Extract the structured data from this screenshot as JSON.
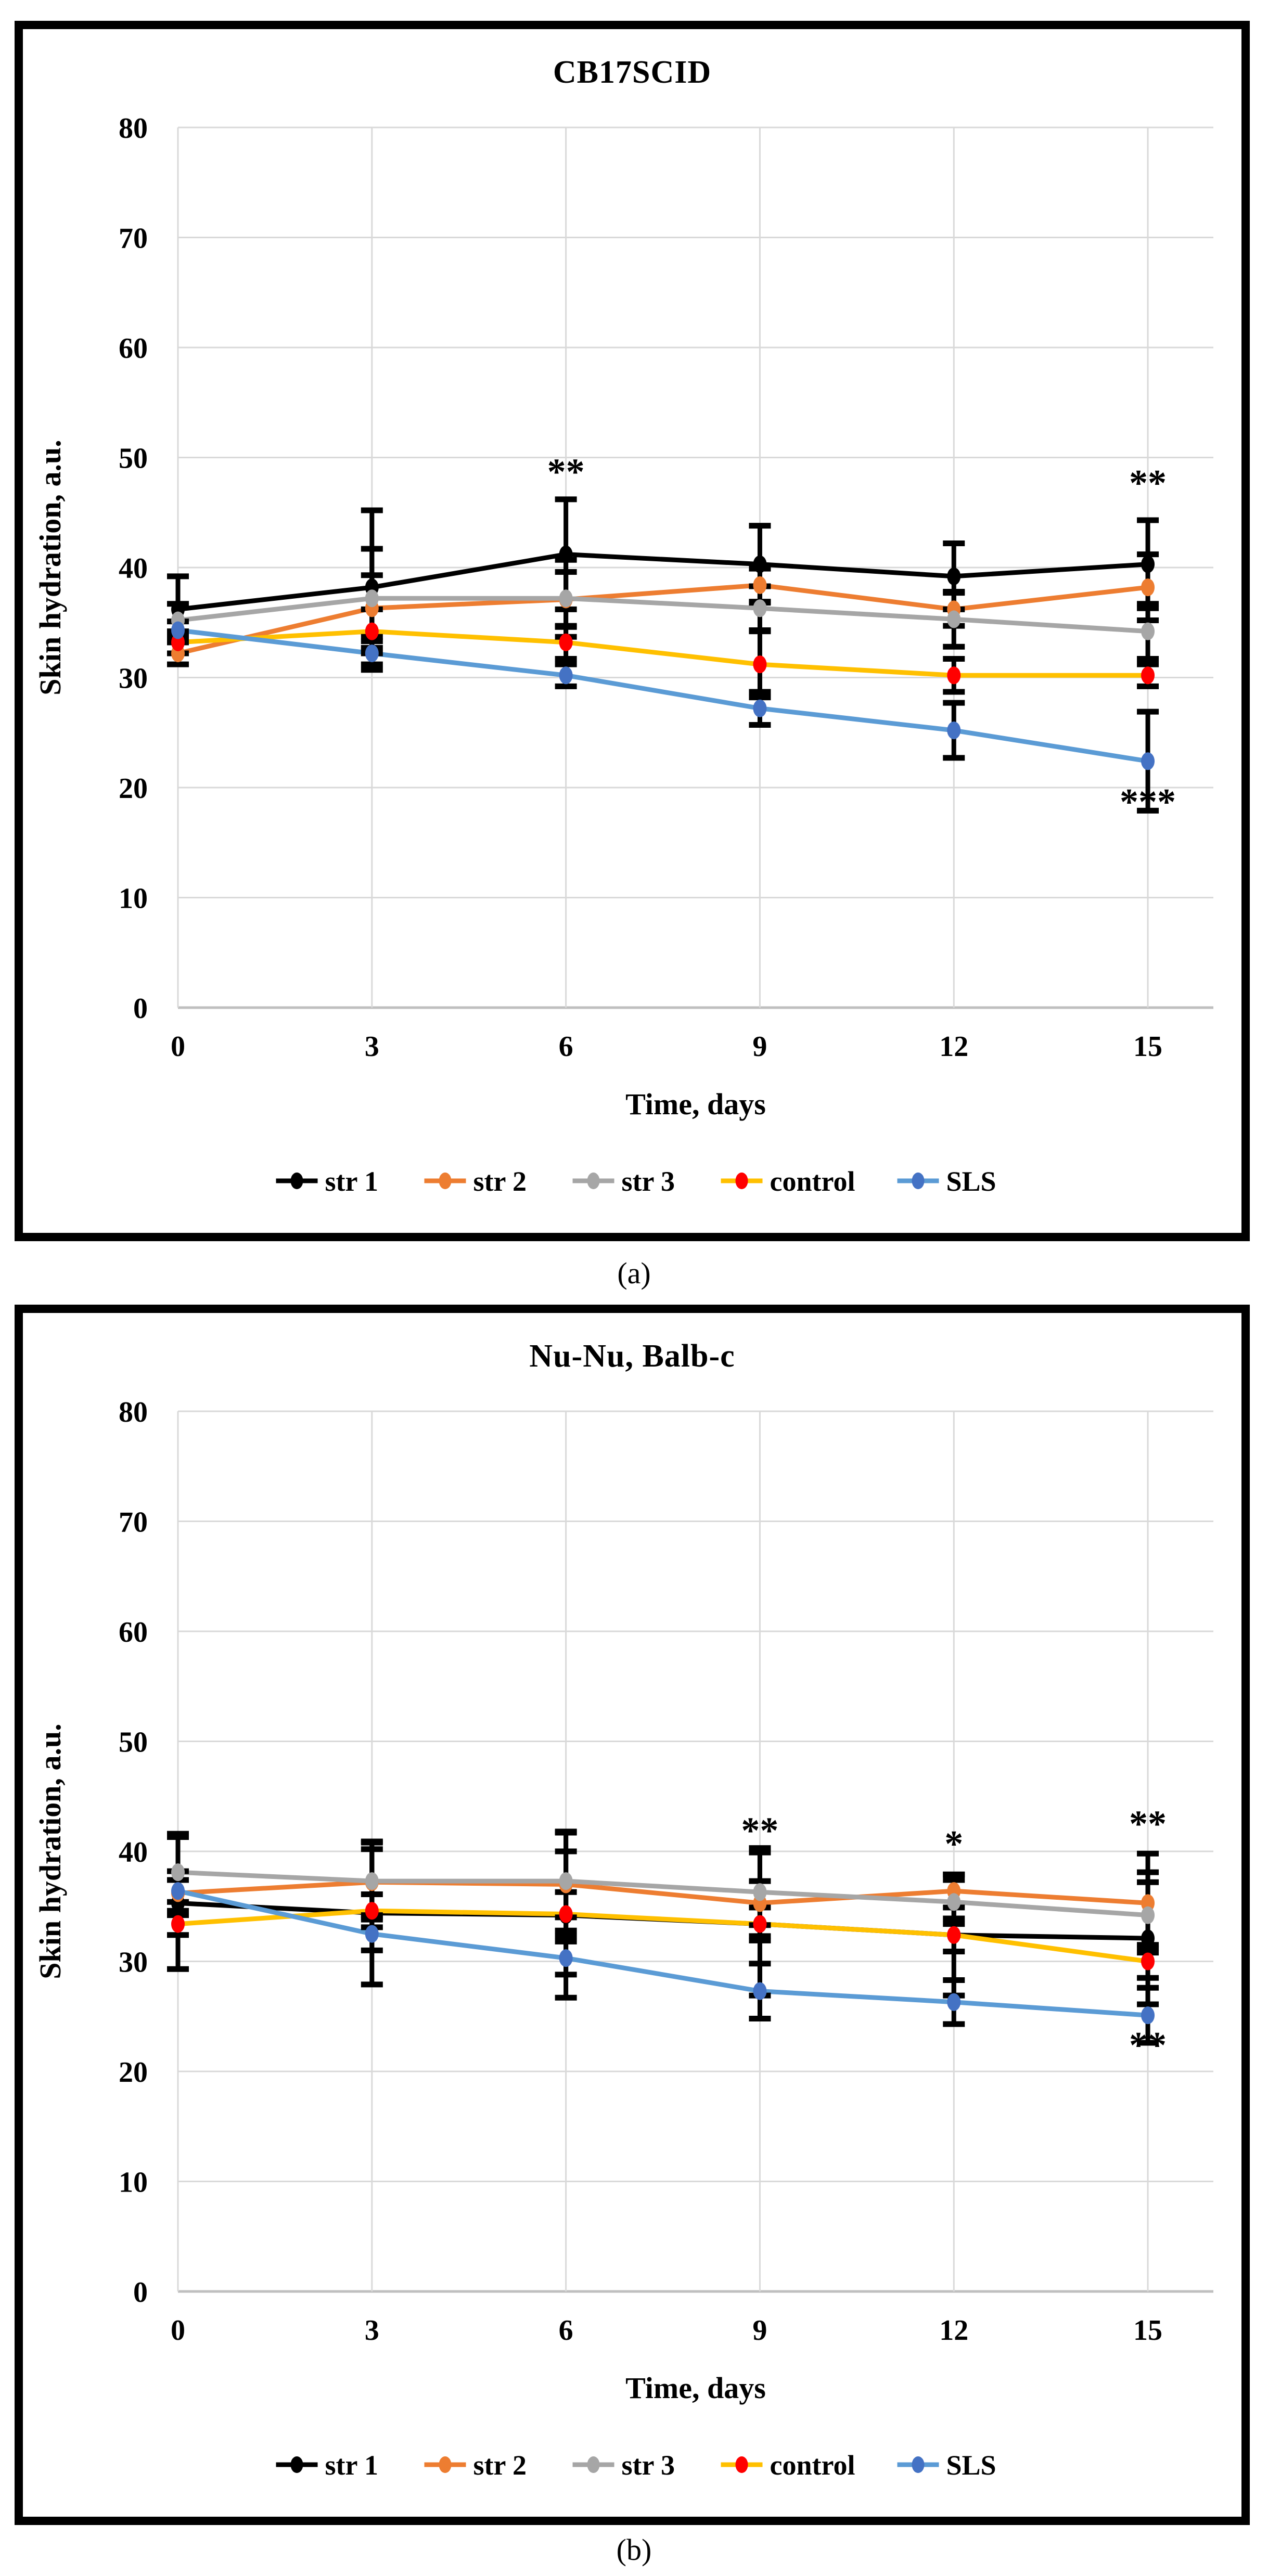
{
  "figure": {
    "background": "#ffffff",
    "caption_a": "(a)",
    "caption_b": "(b)"
  },
  "style": {
    "grid_color": "#d9d9d9",
    "axis_line_color": "#bfbfbf",
    "error_bar_color": "#000000",
    "text_color": "#000000"
  },
  "chart_data": [
    {
      "id": "a",
      "type": "line",
      "title": "CB17SCID",
      "caption": "(a)",
      "xlabel": "Time, days",
      "ylabel": "Skin hydration, a.u.",
      "ylim": [
        0,
        80
      ],
      "yticks": [
        0,
        10,
        20,
        30,
        40,
        50,
        60,
        70,
        80
      ],
      "x": [
        0,
        3,
        6,
        9,
        12,
        15
      ],
      "xtick_labels": [
        "0",
        "3",
        "6",
        "9",
        "12",
        "15"
      ],
      "xlim": [
        0,
        16
      ],
      "grid": true,
      "legend_position": "bottom",
      "series": [
        {
          "name": "str 1",
          "line_color": "#000000",
          "marker_color": "#000000",
          "values": [
            36.2,
            38.2,
            41.2,
            40.3,
            39.2,
            40.3
          ],
          "errors": [
            3,
            7,
            5,
            3.5,
            3,
            4
          ]
        },
        {
          "name": "str 2",
          "line_color": "#ED7D31",
          "marker_color": "#ED7D31",
          "values": [
            32.2,
            36.3,
            37.1,
            38.4,
            36.2,
            38.2
          ],
          "errors": [
            1,
            3,
            2.5,
            1.5,
            1.5,
            3
          ]
        },
        {
          "name": "str 3",
          "line_color": "#A6A6A6",
          "marker_color": "#A6A6A6",
          "values": [
            35.2,
            37.2,
            37.2,
            36.3,
            35.3,
            34.2
          ],
          "errors": [
            1.5,
            4.5,
            3.5,
            2,
            2.5,
            2.5
          ]
        },
        {
          "name": "control",
          "line_color": "#FFC000",
          "marker_color": "#FF0000",
          "values": [
            33.2,
            34.2,
            33.2,
            31.2,
            30.2,
            30.2
          ],
          "errors": [
            1,
            2,
            1.5,
            3,
            1.5,
            1
          ]
        },
        {
          "name": "SLS",
          "line_color": "#5B9BD5",
          "marker_color": "#4472C4",
          "values": [
            34.3,
            32.2,
            30.2,
            27.2,
            25.2,
            22.4
          ],
          "errors": [
            0.8,
            1.5,
            1,
            1.5,
            2.5,
            4.5
          ]
        }
      ],
      "annotations": [
        {
          "x": 6,
          "value": 48.6,
          "text": "**"
        },
        {
          "x": 15,
          "value": 47.6,
          "text": "**"
        },
        {
          "x": 15,
          "value": 18.6,
          "text": "***"
        }
      ]
    },
    {
      "id": "b",
      "type": "line",
      "title": "Nu-Nu, Balb-c",
      "caption": "(b)",
      "xlabel": "Time, days",
      "ylabel": "Skin hydration, a.u.",
      "ylim": [
        0,
        80
      ],
      "yticks": [
        0,
        10,
        20,
        30,
        40,
        50,
        60,
        70,
        80
      ],
      "x": [
        0,
        3,
        6,
        9,
        12,
        15
      ],
      "xtick_labels": [
        "0",
        "3",
        "6",
        "9",
        "12",
        "15"
      ],
      "xlim": [
        0,
        16
      ],
      "grid": true,
      "legend_position": "bottom",
      "series": [
        {
          "name": "str 1",
          "line_color": "#000000",
          "marker_color": "#000000",
          "values": [
            35.3,
            34.4,
            34.2,
            33.4,
            32.4,
            32.1
          ],
          "errors": [
            6,
            6.5,
            7.5,
            6.5,
            5.5,
            6
          ]
        },
        {
          "name": "str 2",
          "line_color": "#ED7D31",
          "marker_color": "#ED7D31",
          "values": [
            36.2,
            37.2,
            37.0,
            35.3,
            36.4,
            35.3
          ],
          "errors": [
            2,
            3,
            3,
            2,
            1.5,
            4.5
          ]
        },
        {
          "name": "str 3",
          "line_color": "#A6A6A6",
          "marker_color": "#A6A6A6",
          "values": [
            38.1,
            37.3,
            37.3,
            36.3,
            35.4,
            34.2
          ],
          "errors": [
            3.5,
            3.5,
            4.5,
            4,
            2,
            3
          ]
        },
        {
          "name": "control",
          "line_color": "#FFC000",
          "marker_color": "#FF0000",
          "values": [
            33.4,
            34.6,
            34.3,
            33.4,
            32.4,
            30.0
          ],
          "errors": [
            1,
            1.5,
            2,
            1.5,
            1.5,
            1.5
          ]
        },
        {
          "name": "SLS",
          "line_color": "#5B9BD5",
          "marker_color": "#4472C4",
          "values": [
            36.4,
            32.5,
            30.3,
            27.3,
            26.3,
            25.1
          ],
          "errors": [
            1,
            1.5,
            1.5,
            2.5,
            2,
            2.5
          ]
        }
      ],
      "annotations": [
        {
          "x": 9,
          "value": 41.8,
          "text": "**"
        },
        {
          "x": 12,
          "value": 40.6,
          "text": "*"
        },
        {
          "x": 15,
          "value": 42.4,
          "text": "**"
        },
        {
          "x": 15,
          "value": 22.3,
          "text": "**"
        }
      ]
    }
  ]
}
